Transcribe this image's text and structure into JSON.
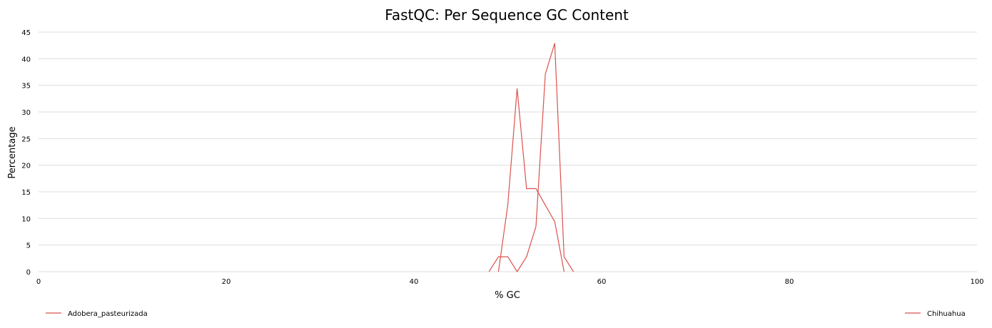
{
  "chart_data": {
    "type": "line",
    "title": "FastQC: Per Sequence GC Content",
    "xlabel": "% GC",
    "ylabel": "Percentage",
    "xlim": [
      0,
      100
    ],
    "ylim": [
      0,
      45
    ],
    "x_ticks": [
      "0",
      "20",
      "40",
      "60",
      "80",
      "100"
    ],
    "y_ticks": [
      "0",
      "5",
      "10",
      "15",
      "20",
      "25",
      "30",
      "35",
      "40",
      "45"
    ],
    "grid": true,
    "legend_placement": "bottom",
    "series": [
      {
        "name": "Adobera_pasteurizada",
        "color": "#d9534f",
        "x": [
          48,
          49,
          50,
          51,
          52,
          53,
          54,
          55,
          56,
          57
        ],
        "y": [
          0,
          2.8,
          2.8,
          0,
          2.8,
          8.5,
          37.1,
          42.9,
          2.8,
          0
        ]
      },
      {
        "name": "Chihuahua",
        "color": "#d9534f",
        "x": [
          49,
          50,
          51,
          52,
          53,
          54,
          55,
          56
        ],
        "y": [
          0,
          12.5,
          34.4,
          15.6,
          15.6,
          12.5,
          9.4,
          0
        ]
      }
    ]
  }
}
